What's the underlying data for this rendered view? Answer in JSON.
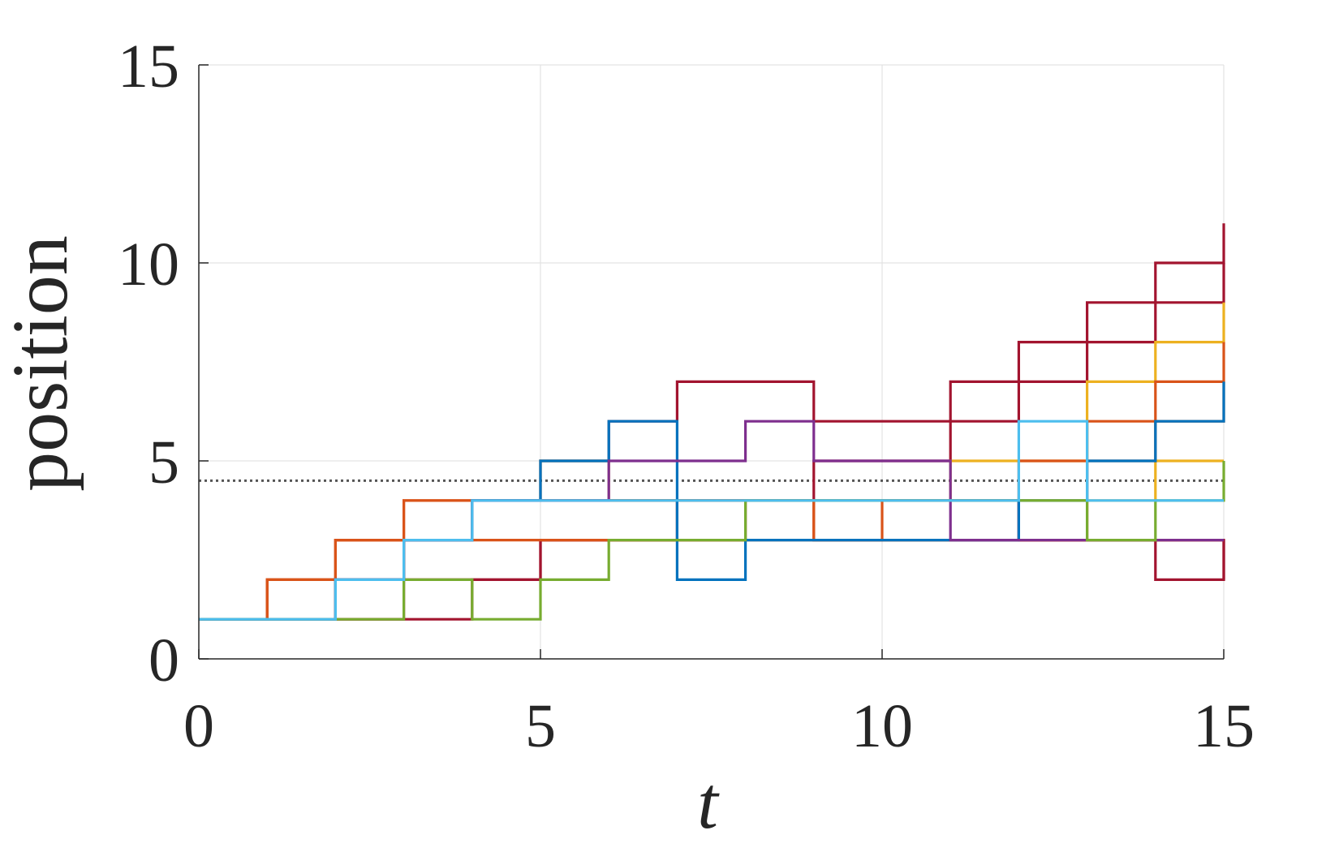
{
  "chart_data": {
    "type": "line",
    "step": true,
    "xlabel": "t",
    "ylabel": "position",
    "xlim": [
      0,
      15
    ],
    "ylim": [
      0,
      15
    ],
    "xticks": [
      "0",
      "5",
      "10",
      "15"
    ],
    "yticks": [
      "0",
      "5",
      "10",
      "15"
    ],
    "grid": true,
    "legend": "none",
    "reference_line": {
      "y": 4.5,
      "style": "dotted",
      "color": "#555555"
    },
    "colors": {
      "blue": "#0072BD",
      "orange": "#D95319",
      "yellow": "#EDB120",
      "purple": "#7E2F8E",
      "green": "#77AC30",
      "cyan": "#4DBEEE",
      "crimson": "#A2142F"
    },
    "series": [
      {
        "color": "#A2142F",
        "x": [
          0,
          1,
          2,
          3,
          4,
          5,
          6,
          7,
          8,
          9,
          10,
          11,
          12,
          13,
          14,
          15
        ],
        "y": [
          1,
          1,
          2,
          3,
          4,
          5,
          6,
          7,
          7,
          6,
          6,
          7,
          8,
          9,
          10,
          11
        ]
      },
      {
        "color": "#A2142F",
        "x": [
          0,
          1,
          2,
          3,
          4,
          5,
          6,
          7,
          8,
          9,
          10,
          11,
          12,
          13,
          14,
          15
        ],
        "y": [
          1,
          1,
          1,
          1,
          2,
          3,
          3,
          3,
          4,
          5,
          5,
          6,
          7,
          8,
          9,
          10
        ]
      },
      {
        "color": "#A2142F",
        "x": [
          0,
          1,
          2,
          3,
          4,
          5,
          6,
          7,
          8,
          9,
          10,
          11,
          12,
          13,
          14,
          15
        ],
        "y": [
          1,
          1,
          1,
          2,
          2,
          3,
          3,
          4,
          4,
          4,
          4,
          4,
          3,
          3,
          2,
          3
        ]
      },
      {
        "color": "#A2142F",
        "x": [
          0,
          1,
          2,
          3,
          4,
          5,
          6,
          7,
          8,
          9,
          10,
          11,
          12,
          13,
          14,
          15
        ],
        "y": [
          1,
          1,
          2,
          3,
          4,
          4,
          4,
          4,
          4,
          4,
          4,
          4,
          3,
          3,
          3,
          2
        ]
      },
      {
        "color": "#EDB120",
        "x": [
          0,
          1,
          2,
          3,
          4,
          5,
          6,
          7,
          8,
          9,
          10,
          11,
          12,
          13,
          14,
          15
        ],
        "y": [
          1,
          1,
          2,
          3,
          4,
          5,
          4,
          4,
          4,
          4,
          4,
          5,
          5,
          7,
          8,
          9
        ]
      },
      {
        "color": "#EDB120",
        "x": [
          0,
          1,
          2,
          3,
          4,
          5,
          6,
          7,
          8,
          9,
          10,
          11,
          12,
          13,
          14,
          15
        ],
        "y": [
          1,
          1,
          2,
          3,
          4,
          4,
          4,
          4,
          4,
          4,
          4,
          4,
          4,
          4,
          5,
          5
        ]
      },
      {
        "color": "#D95319",
        "x": [
          0,
          1,
          2,
          3,
          4,
          5,
          6,
          7,
          8,
          9,
          10,
          11,
          12,
          13,
          14,
          15
        ],
        "y": [
          1,
          2,
          3,
          4,
          4,
          4,
          4,
          4,
          4,
          3,
          3,
          3,
          3,
          3,
          3,
          3
        ]
      },
      {
        "color": "#D95319",
        "x": [
          0,
          1,
          2,
          3,
          4,
          5,
          6,
          7,
          8,
          9,
          10,
          11,
          12,
          13,
          14,
          15
        ],
        "y": [
          1,
          2,
          3,
          4,
          4,
          4,
          4,
          4,
          4,
          3,
          4,
          4,
          5,
          6,
          7,
          8
        ]
      },
      {
        "color": "#D95319",
        "x": [
          0,
          1,
          2,
          3,
          4,
          5,
          6,
          7,
          8,
          9,
          10,
          11,
          12,
          13,
          14,
          15
        ],
        "y": [
          1,
          2,
          3,
          3,
          3,
          3,
          3,
          3,
          3,
          3,
          3,
          3,
          3,
          5,
          6,
          7
        ]
      },
      {
        "color": "#0072BD",
        "x": [
          0,
          1,
          2,
          3,
          4,
          5,
          6,
          7,
          8,
          9,
          10,
          11,
          12,
          13,
          14,
          15
        ],
        "y": [
          1,
          1,
          2,
          3,
          4,
          5,
          6,
          2,
          3,
          3,
          3,
          3,
          4,
          5,
          6,
          7
        ]
      },
      {
        "color": "#7E2F8E",
        "x": [
          0,
          1,
          2,
          3,
          4,
          5,
          6,
          7,
          8,
          9,
          10,
          11,
          12,
          13,
          14,
          15
        ],
        "y": [
          1,
          1,
          2,
          3,
          4,
          4,
          5,
          5,
          6,
          5,
          5,
          3,
          3,
          3,
          3,
          3
        ]
      },
      {
        "color": "#77AC30",
        "x": [
          0,
          1,
          2,
          3,
          4,
          5,
          6,
          7,
          8,
          9,
          10,
          11,
          12,
          13,
          14,
          15
        ],
        "y": [
          1,
          1,
          1,
          2,
          1,
          2,
          3,
          3,
          4,
          4,
          4,
          4,
          4,
          3,
          4,
          5
        ]
      },
      {
        "color": "#4DBEEE",
        "x": [
          0,
          1,
          2,
          3,
          4,
          5,
          6,
          7,
          8,
          9,
          10,
          11,
          12,
          13,
          14,
          15
        ],
        "y": [
          1,
          1,
          2,
          3,
          4,
          4,
          4,
          4,
          4,
          4,
          4,
          4,
          6,
          4,
          4,
          4
        ]
      }
    ]
  }
}
